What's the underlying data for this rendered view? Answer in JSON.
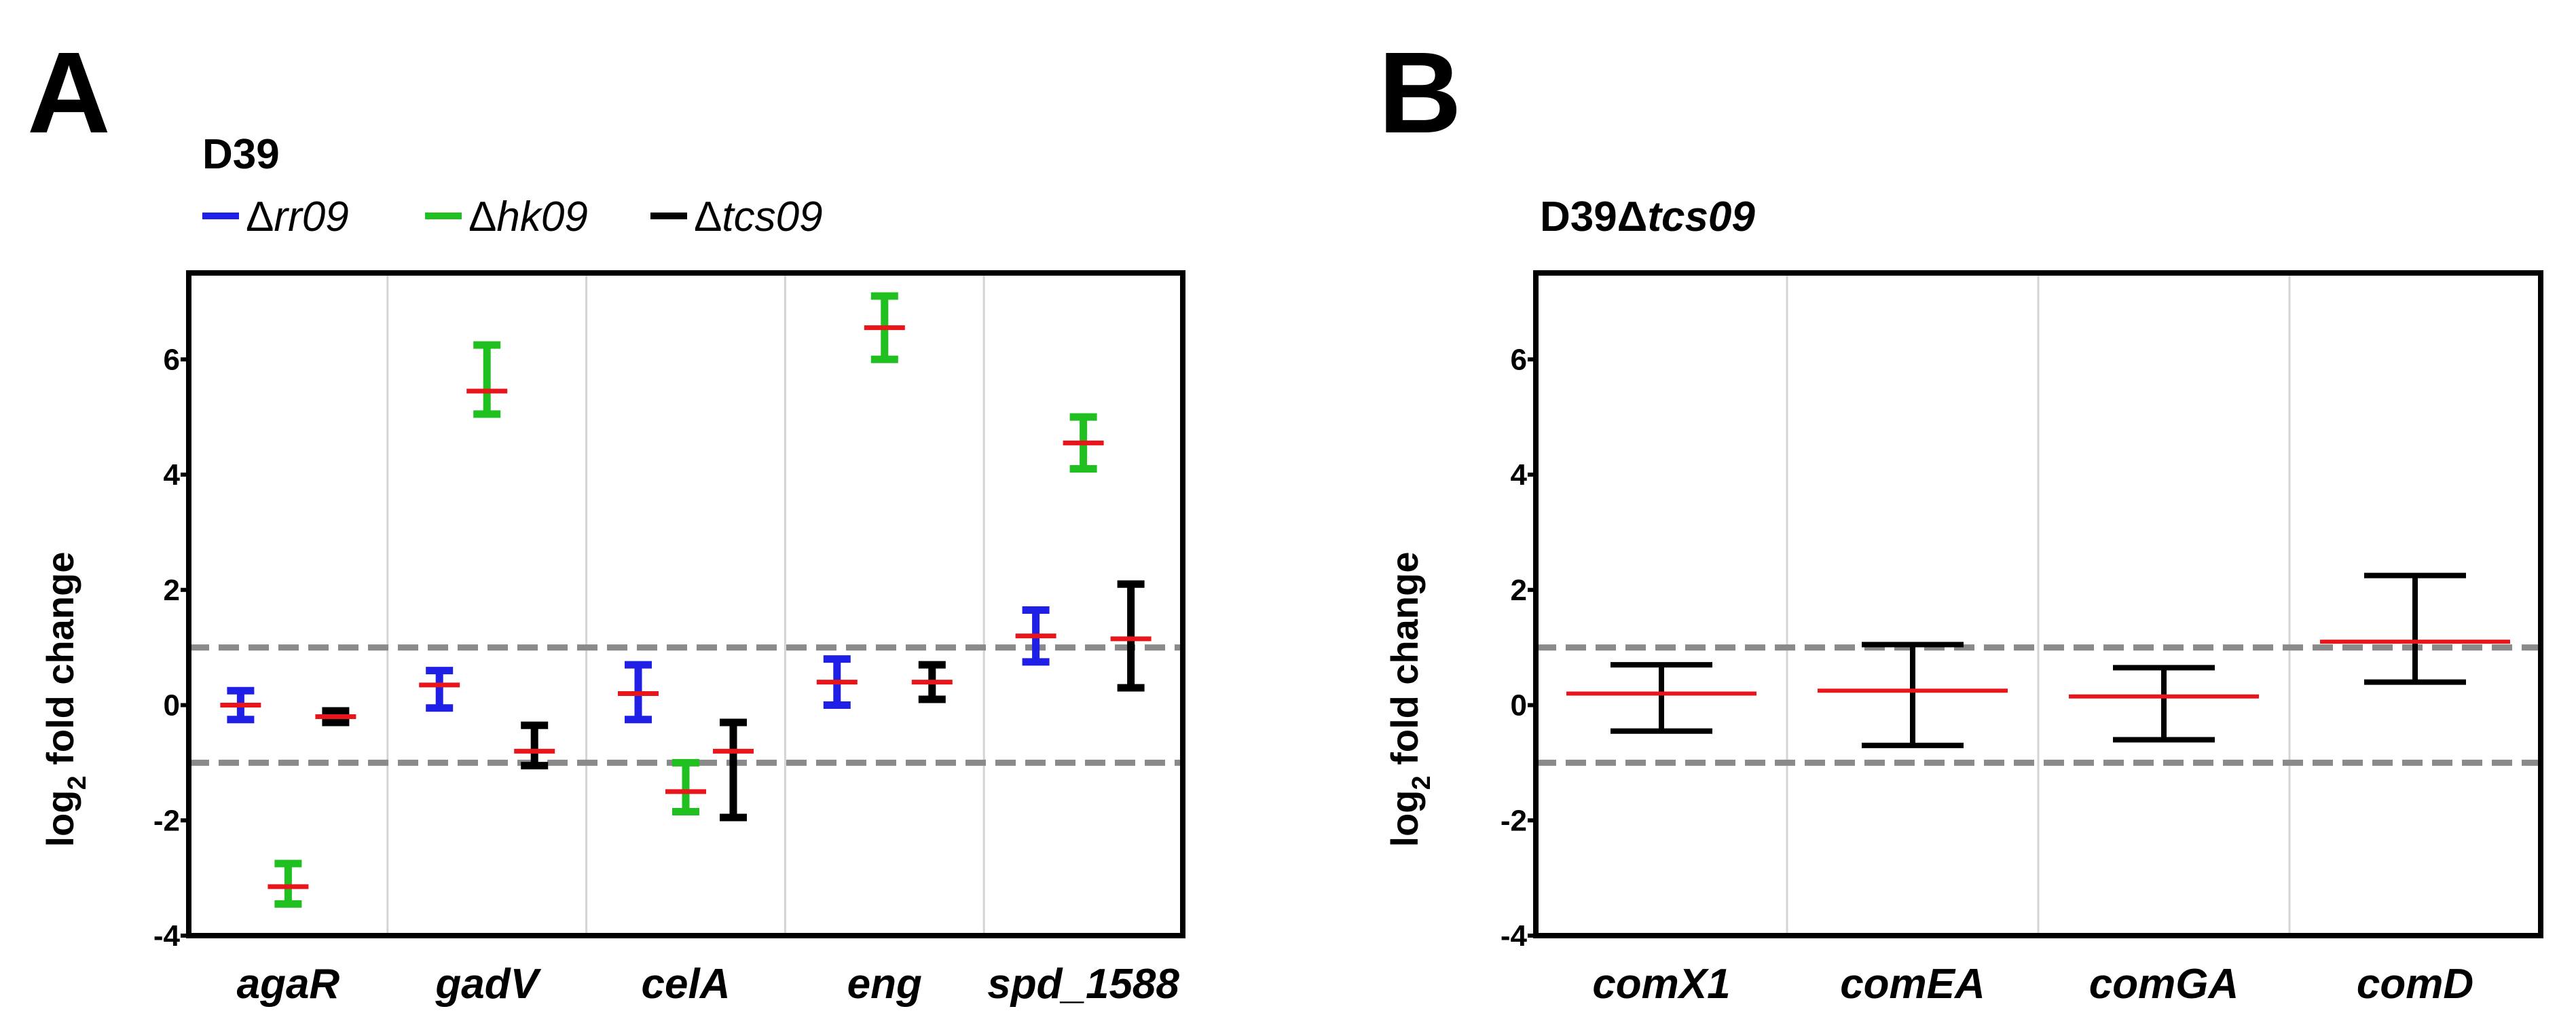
{
  "chart_data": [
    {
      "type": "errorbar",
      "panel_letter": "A",
      "title": "D39",
      "xlabel": "",
      "ylabel": "log2 fold change",
      "ylabel_parts": [
        "log",
        "2",
        " fold change"
      ],
      "ylim": [
        -4,
        7.5
      ],
      "yticks": [
        -4,
        -2,
        0,
        2,
        4,
        6
      ],
      "threshold_lines": [
        -1,
        1
      ],
      "categories": [
        "agaR",
        "gadV",
        "celA",
        "eng",
        "spd_1588"
      ],
      "legend": [
        {
          "prefix": "Δ",
          "name": "rr09",
          "color": "#1f1fe6"
        },
        {
          "prefix": "Δ",
          "name": "hk09",
          "color": "#1fc01f"
        },
        {
          "prefix": "Δ",
          "name": "tcs09",
          "color": "#000000"
        }
      ],
      "mean_color": "#e8151b",
      "series": [
        {
          "name": "Δrr09",
          "color": "#1f1fe6",
          "means": [
            0.0,
            0.35,
            0.2,
            0.4,
            1.2
          ],
          "low": [
            -0.25,
            -0.05,
            -0.25,
            0.0,
            0.75
          ],
          "high": [
            0.25,
            0.6,
            0.7,
            0.8,
            1.65
          ]
        },
        {
          "name": "Δhk09",
          "color": "#1fc01f",
          "means": [
            -3.15,
            5.45,
            -1.5,
            6.55,
            4.55
          ],
          "low": [
            -3.45,
            5.05,
            -1.85,
            6.0,
            4.1
          ],
          "high": [
            -2.75,
            6.25,
            -1.0,
            7.1,
            5.0
          ]
        },
        {
          "name": "Δtcs09",
          "color": "#000000",
          "means": [
            -0.2,
            -0.8,
            -0.8,
            0.4,
            1.15
          ],
          "low": [
            -0.3,
            -1.05,
            -1.95,
            0.1,
            0.3
          ],
          "high": [
            -0.1,
            -0.35,
            -0.3,
            0.7,
            2.1
          ]
        }
      ]
    },
    {
      "type": "errorbar",
      "panel_letter": "B",
      "title": "D39Δtcs09",
      "title_parts": [
        "D39",
        "Δ",
        "tcs09"
      ],
      "xlabel": "",
      "ylabel": "log2 fold change",
      "ylabel_parts": [
        "log",
        "2",
        " fold change"
      ],
      "ylim": [
        -4,
        7.5
      ],
      "yticks": [
        -4,
        -2,
        0,
        2,
        4,
        6
      ],
      "threshold_lines": [
        -1,
        1
      ],
      "categories": [
        "comX1",
        "comEA",
        "comGA",
        "comD"
      ],
      "mean_color": "#e8151b",
      "series": [
        {
          "name": "Δtcs09",
          "color": "#000000",
          "means": [
            0.2,
            0.25,
            0.15,
            1.1
          ],
          "low": [
            -0.45,
            -0.7,
            -0.6,
            0.4
          ],
          "high": [
            0.7,
            1.05,
            0.65,
            2.25
          ]
        }
      ]
    }
  ]
}
